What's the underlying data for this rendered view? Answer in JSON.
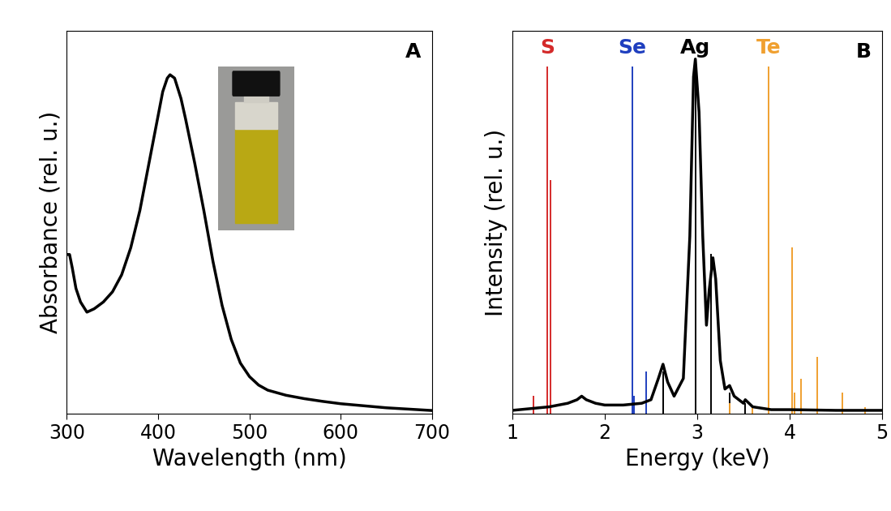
{
  "chart_data": [
    {
      "type": "line",
      "annotation": "A",
      "x_label": "Wavelength (nm)",
      "y_label": "Absorbance (rel. u.)",
      "xlim": [
        300,
        700
      ],
      "xticks": [
        300,
        400,
        500,
        600,
        700
      ],
      "ylim": [
        0,
        1.13
      ],
      "yticks": [],
      "tick_labels": "x",
      "series": [
        {
          "color": "#000000",
          "x": [
            300,
            303,
            306,
            310,
            315,
            322,
            330,
            340,
            350,
            360,
            370,
            380,
            390,
            400,
            405,
            410,
            413,
            418,
            425,
            430,
            440,
            450,
            460,
            470,
            480,
            490,
            500,
            510,
            520,
            540,
            560,
            580,
            600,
            650,
            700
          ],
          "values": [
            0.47,
            0.47,
            0.43,
            0.37,
            0.33,
            0.3,
            0.31,
            0.33,
            0.36,
            0.41,
            0.49,
            0.6,
            0.74,
            0.88,
            0.95,
            0.99,
            1.0,
            0.99,
            0.93,
            0.87,
            0.74,
            0.6,
            0.45,
            0.32,
            0.22,
            0.15,
            0.11,
            0.085,
            0.07,
            0.055,
            0.045,
            0.037,
            0.03,
            0.018,
            0.01
          ]
        }
      ]
    },
    {
      "type": "line",
      "annotation": "B",
      "x_label": "Energy (keV)",
      "y_label": "Intensity (rel. u.)",
      "xlim": [
        1,
        5
      ],
      "xticks": [
        1,
        2,
        3,
        4,
        5
      ],
      "ylim": [
        0,
        1.08
      ],
      "yticks": [],
      "tick_labels": "x",
      "series": [
        {
          "color": "#000000",
          "x": [
            1.0,
            1.2,
            1.4,
            1.5,
            1.6,
            1.7,
            1.75,
            1.8,
            1.9,
            2.0,
            2.2,
            2.4,
            2.5,
            2.58,
            2.63,
            2.68,
            2.75,
            2.85,
            2.92,
            2.96,
            2.98,
            3.02,
            3.06,
            3.1,
            3.13,
            3.17,
            3.2,
            3.25,
            3.3,
            3.35,
            3.4,
            3.5,
            3.52,
            3.6,
            3.8,
            4.0,
            4.5,
            5.0
          ],
          "values": [
            0.01,
            0.015,
            0.02,
            0.025,
            0.03,
            0.04,
            0.05,
            0.04,
            0.03,
            0.025,
            0.025,
            0.03,
            0.04,
            0.1,
            0.14,
            0.09,
            0.05,
            0.1,
            0.5,
            0.95,
            1.0,
            0.85,
            0.5,
            0.25,
            0.35,
            0.44,
            0.38,
            0.15,
            0.07,
            0.08,
            0.05,
            0.03,
            0.04,
            0.02,
            0.012,
            0.012,
            0.01,
            0.01
          ]
        },
        {
          "name": "S",
          "type": "stem",
          "color": "#d42a2a",
          "x": [
            1.23,
            1.38,
            1.41
          ],
          "values": [
            0.05,
            0.98,
            0.66
          ]
        },
        {
          "name": "Se",
          "type": "stem",
          "color": "#1f3fbf",
          "x": [
            2.3,
            2.32,
            2.45
          ],
          "values": [
            0.98,
            0.05,
            0.12
          ]
        },
        {
          "name": "Ag",
          "type": "stem",
          "color": "#000000",
          "x": [
            2.63,
            2.98,
            3.15,
            3.35,
            3.52
          ],
          "values": [
            0.12,
            1.0,
            0.45,
            0.06,
            0.03
          ]
        },
        {
          "name": "Te",
          "type": "stem",
          "color": "#f0a030",
          "x": [
            3.35,
            3.6,
            3.77,
            4.03,
            4.05,
            4.12,
            4.3,
            4.57,
            4.82
          ],
          "values": [
            0.03,
            0.02,
            0.98,
            0.47,
            0.06,
            0.1,
            0.16,
            0.06,
            0.02
          ]
        }
      ]
    }
  ]
}
